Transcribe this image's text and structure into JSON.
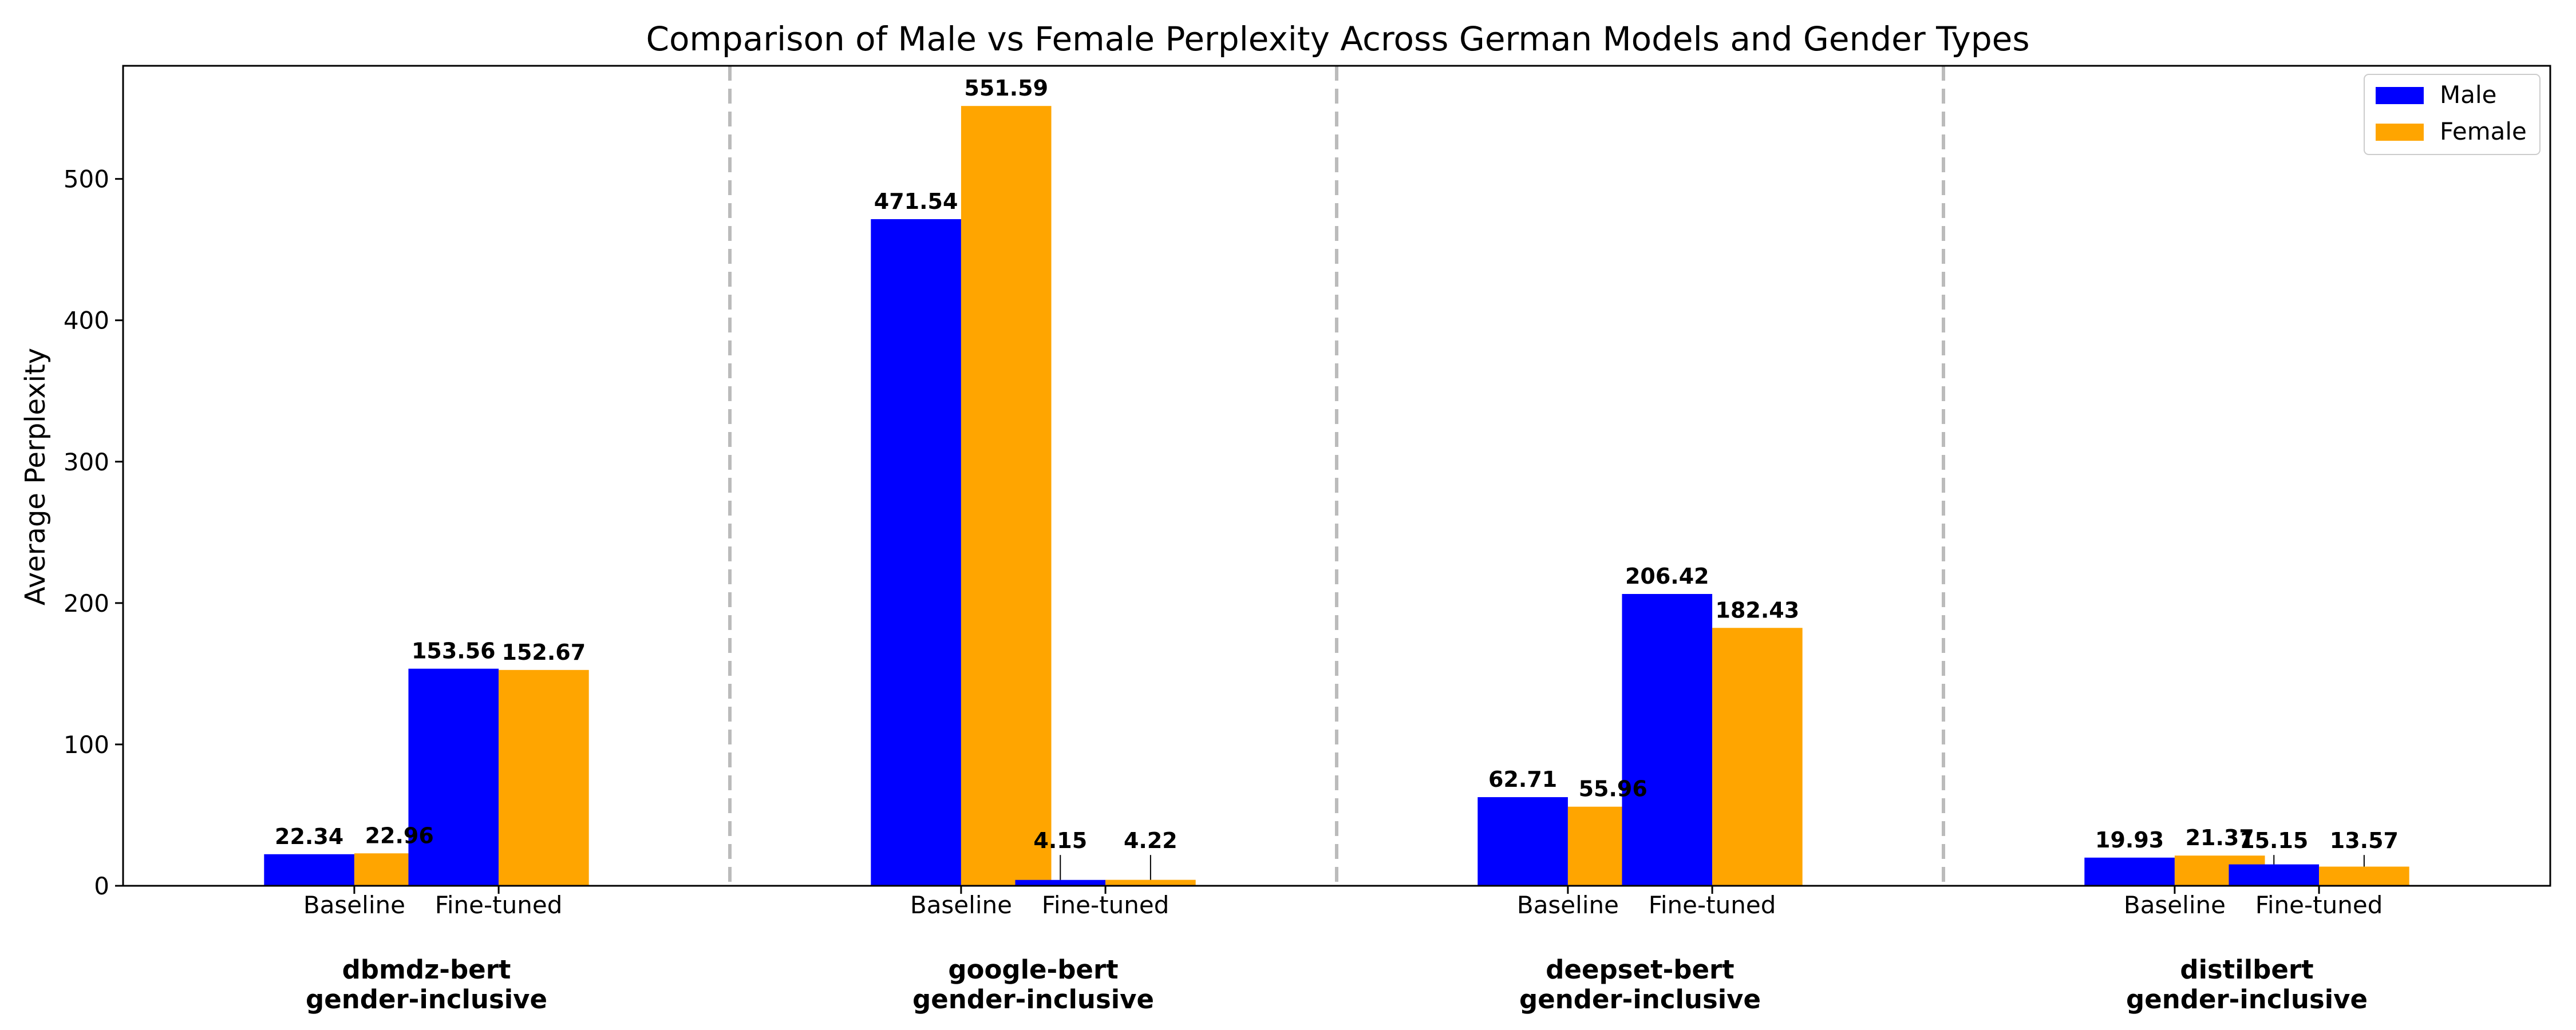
{
  "chart_data": {
    "type": "bar",
    "title": "Comparison of Male vs Female Perplexity Across German Models and Gender Types",
    "xlabel": "",
    "ylabel": "Average Perplexity",
    "ylim": [
      0,
      580
    ],
    "yticks": [
      0,
      100,
      200,
      300,
      400,
      500
    ],
    "grid": false,
    "legend_position": "top-right",
    "series": [
      {
        "name": "Male",
        "color": "#0000ff"
      },
      {
        "name": "Female",
        "color": "#ffa500"
      }
    ],
    "groups": [
      {
        "model": "dbmdz-bert",
        "gender_type": "gender-inclusive",
        "bars": [
          {
            "label": "Baseline",
            "male": 22.34,
            "female": 22.96
          },
          {
            "label": "Fine-tuned",
            "male": 153.56,
            "female": 152.67
          }
        ]
      },
      {
        "model": "google-bert",
        "gender_type": "gender-inclusive",
        "bars": [
          {
            "label": "Baseline",
            "male": 471.54,
            "female": 551.59
          },
          {
            "label": "Fine-tuned",
            "male": 4.15,
            "female": 4.22
          }
        ]
      },
      {
        "model": "deepset-bert",
        "gender_type": "gender-inclusive",
        "bars": [
          {
            "label": "Baseline",
            "male": 62.71,
            "female": 55.96
          },
          {
            "label": "Fine-tuned",
            "male": 206.42,
            "female": 182.43
          }
        ]
      },
      {
        "model": "distilbert",
        "gender_type": "gender-inclusive",
        "bars": [
          {
            "label": "Baseline",
            "male": 19.93,
            "female": 21.37
          },
          {
            "label": "Fine-tuned",
            "male": 15.15,
            "female": 13.57
          }
        ]
      }
    ]
  }
}
